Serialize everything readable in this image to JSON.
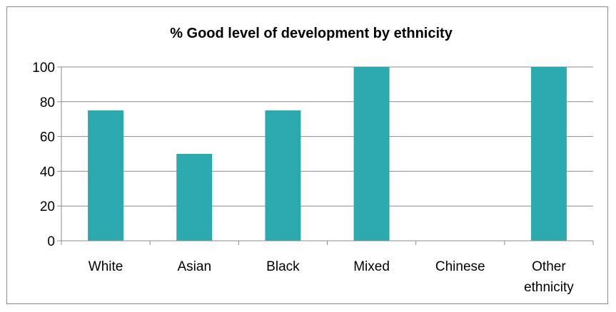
{
  "chart_data": {
    "type": "bar",
    "title": "% Good level of development by ethnicity",
    "xlabel": "",
    "ylabel": "",
    "categories": [
      "White",
      "Asian",
      "Black",
      "Mixed",
      "Chinese",
      "Other ethnicity"
    ],
    "category_lines": [
      [
        "White"
      ],
      [
        "Asian"
      ],
      [
        "Black"
      ],
      [
        "Mixed"
      ],
      [
        "Chinese"
      ],
      [
        "Other",
        "ethnicity"
      ]
    ],
    "values": [
      75,
      50,
      75,
      100,
      0,
      100
    ],
    "ylim": [
      0,
      100
    ],
    "yticks": [
      0,
      20,
      40,
      60,
      80,
      100
    ],
    "grid": true,
    "legend": "none",
    "bar_color": "#2CA9AE",
    "gridline_color": "#8c8c8c"
  }
}
